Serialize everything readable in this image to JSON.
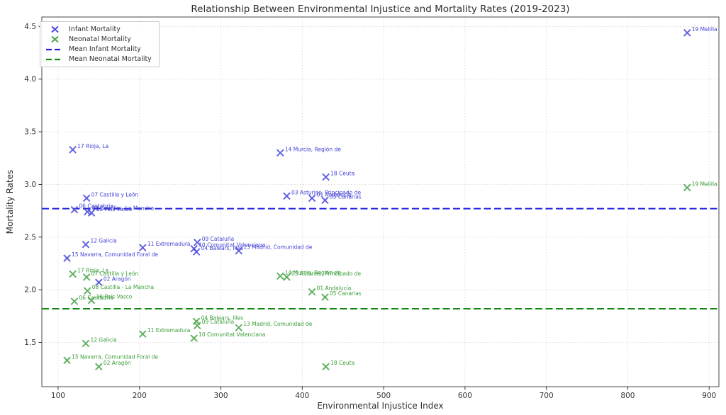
{
  "chart_data": {
    "type": "scatter",
    "title": "Relationship Between Environmental Injustice and Mortality Rates (2019-2023)",
    "xlabel": "Environmental Injustice Index",
    "ylabel": "Mortality Rates",
    "x_ticks": [
      100,
      200,
      300,
      400,
      500,
      600,
      700,
      800,
      900
    ],
    "y_ticks": [
      1.5,
      2.0,
      2.5,
      3.0,
      3.5,
      4.0,
      4.5
    ],
    "xlim": [
      80,
      912
    ],
    "ylim": [
      1.08,
      4.59
    ],
    "grid": true,
    "grid_style": "dotted",
    "legend_position": "upper-left",
    "series": [
      {
        "key": "infant",
        "name": "Infant Mortality",
        "marker": "x",
        "color": "#4d4dde",
        "label_color": "#4343d6",
        "mean": 2.77,
        "mean_label": "Mean Infant Mortality",
        "mean_color": "#1f1fe0"
      },
      {
        "key": "neonatal",
        "name": "Neonatal Mortality",
        "marker": "x",
        "color": "#4da64d",
        "label_color": "#3a9e3a",
        "mean": 1.82,
        "mean_label": "Mean Neonatal Mortality",
        "mean_color": "#128812"
      }
    ],
    "points": [
      {
        "label": "01 Andalucía",
        "x": 412,
        "infant": 2.87,
        "neonatal": 1.98
      },
      {
        "label": "02 Aragón",
        "x": 150,
        "infant": 2.07,
        "neonatal": 1.27
      },
      {
        "label": "03 Asturias, Principado de",
        "x": 381,
        "infant": 2.89,
        "neonatal": 2.12
      },
      {
        "label": "04 Balears, Illes",
        "x": 270,
        "infant": 2.36,
        "neonatal": 1.7
      },
      {
        "label": "05 Canarias",
        "x": 428,
        "infant": 2.85,
        "neonatal": 1.93
      },
      {
        "label": "06 Cantabria",
        "x": 120,
        "infant": 2.76,
        "neonatal": 1.89
      },
      {
        "label": "07 Castilla y León",
        "x": 135,
        "infant": 2.87,
        "neonatal": 2.12
      },
      {
        "label": "08 Castilla - La Mancha",
        "x": 136,
        "infant": 2.74,
        "neonatal": 1.99
      },
      {
        "label": "09 Cataluña",
        "x": 271,
        "infant": 2.45,
        "neonatal": 1.66
      },
      {
        "label": "10 Comunitat Valenciana",
        "x": 267,
        "infant": 2.39,
        "neonatal": 1.54
      },
      {
        "label": "11 Extremadura",
        "x": 204,
        "infant": 2.4,
        "neonatal": 1.58
      },
      {
        "label": "12 Galicia",
        "x": 134,
        "infant": 2.43,
        "neonatal": 1.49
      },
      {
        "label": "13 Madrid, Comunidad de",
        "x": 322,
        "infant": 2.37,
        "neonatal": 1.64
      },
      {
        "label": "14 Murcia, Región de",
        "x": 373,
        "infant": 3.3,
        "neonatal": 2.13
      },
      {
        "label": "15 Navarra, Comunidad Foral de",
        "x": 111,
        "infant": 2.3,
        "neonatal": 1.33
      },
      {
        "label": "16 País Vasco",
        "x": 141,
        "infant": 2.73,
        "neonatal": 1.9
      },
      {
        "label": "17 Rioja, La",
        "x": 118,
        "infant": 3.33,
        "neonatal": 2.15
      },
      {
        "label": "18 Ceuta",
        "x": 429,
        "infant": 3.07,
        "neonatal": 1.27
      },
      {
        "label": "19 Melilla",
        "x": 873,
        "infant": 4.44,
        "neonatal": 2.97
      }
    ]
  }
}
